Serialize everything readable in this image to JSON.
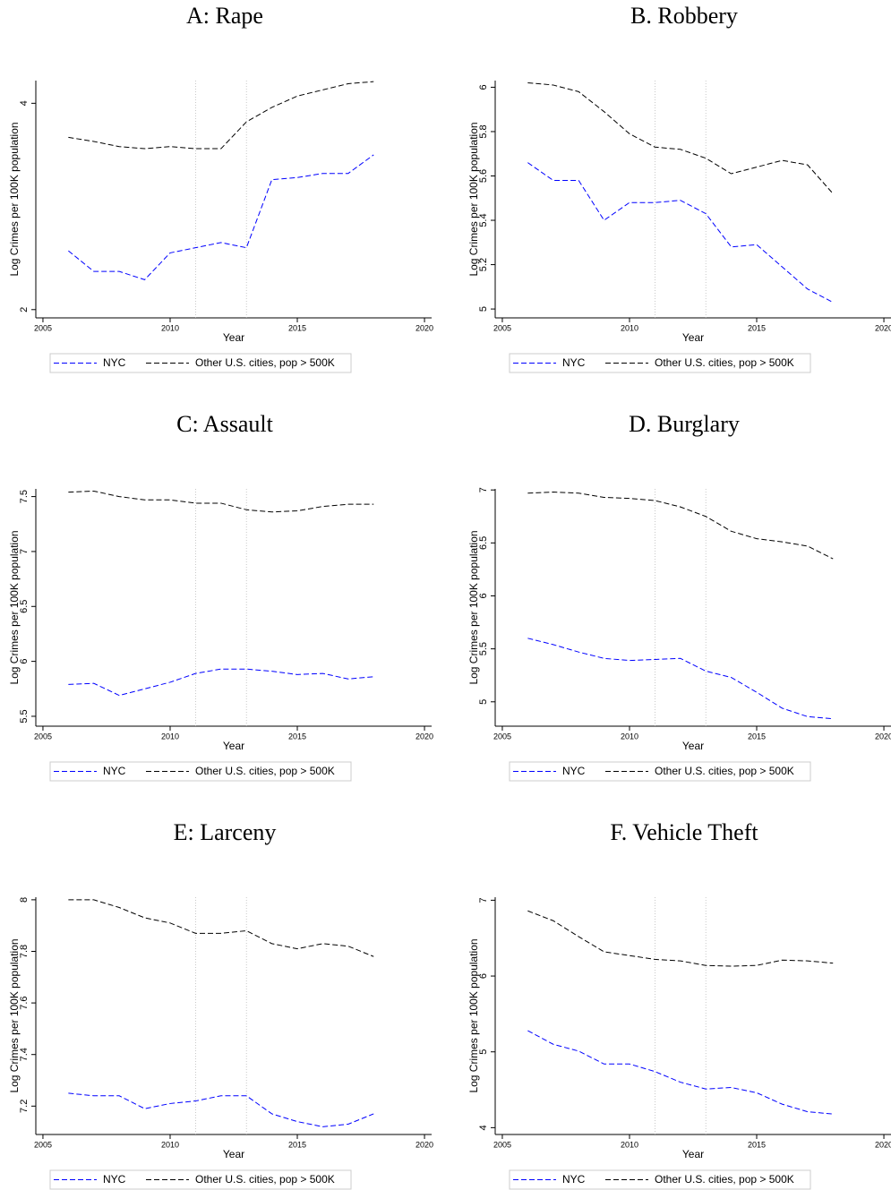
{
  "chart_data": [
    {
      "type": "line",
      "title": "A: Rape",
      "xlabel": "Year",
      "ylabel": "Log Crimes per 100K population",
      "x": [
        2006,
        2007,
        2008,
        2009,
        2010,
        2011,
        2012,
        2013,
        2014,
        2015,
        2016,
        2017,
        2018
      ],
      "series": [
        {
          "name": "NYC",
          "color": "#0000ff",
          "values": [
            2.57,
            2.37,
            2.37,
            2.29,
            2.55,
            2.6,
            2.65,
            2.6,
            3.26,
            3.28,
            3.32,
            3.32,
            3.5
          ]
        },
        {
          "name": "Other U.S. cities, pop > 500K",
          "color": "#000000",
          "values": [
            3.67,
            3.63,
            3.58,
            3.56,
            3.58,
            3.56,
            3.56,
            3.82,
            3.96,
            4.07,
            4.13,
            4.19,
            4.21
          ]
        }
      ],
      "xlim": [
        2004.72,
        2020.28
      ],
      "xticks": [
        2005,
        2010,
        2015,
        2020
      ],
      "ylim": [
        1.92,
        4.22
      ],
      "yticks": [
        2,
        4
      ],
      "vlines": [
        2011,
        2013
      ],
      "legend": "bottom"
    },
    {
      "type": "line",
      "title": "B. Robbery",
      "xlabel": "Year",
      "ylabel": "Log Crimes per 100K population",
      "x": [
        2006,
        2007,
        2008,
        2009,
        2010,
        2011,
        2012,
        2013,
        2014,
        2015,
        2016,
        2017,
        2018
      ],
      "series": [
        {
          "name": "NYC",
          "color": "#0000ff",
          "values": [
            5.66,
            5.58,
            5.58,
            5.4,
            5.48,
            5.48,
            5.49,
            5.43,
            5.28,
            5.29,
            5.19,
            5.09,
            5.03
          ]
        },
        {
          "name": "Other U.S. cities, pop > 500K",
          "color": "#000000",
          "values": [
            6.02,
            6.01,
            5.98,
            5.89,
            5.79,
            5.73,
            5.72,
            5.68,
            5.61,
            5.64,
            5.67,
            5.65,
            5.52
          ]
        }
      ],
      "xlim": [
        2004.72,
        2020.28
      ],
      "xticks": [
        2005,
        2010,
        2015,
        2020
      ],
      "ylim": [
        4.96,
        6.03
      ],
      "yticks": [
        5,
        5.2,
        5.4,
        5.6,
        5.8,
        6
      ],
      "vlines": [
        2011,
        2013
      ],
      "legend": "bottom"
    },
    {
      "type": "line",
      "title": "C: Assault",
      "xlabel": "Year",
      "ylabel": "Log Crimes per 100K population",
      "x": [
        2006,
        2007,
        2008,
        2009,
        2010,
        2011,
        2012,
        2013,
        2014,
        2015,
        2016,
        2017,
        2018
      ],
      "series": [
        {
          "name": "NYC",
          "color": "#0000ff",
          "values": [
            5.79,
            5.8,
            5.69,
            5.75,
            5.81,
            5.89,
            5.93,
            5.93,
            5.91,
            5.88,
            5.89,
            5.84,
            5.86
          ]
        },
        {
          "name": "Other U.S. cities, pop > 500K",
          "color": "#000000",
          "values": [
            7.54,
            7.55,
            7.5,
            7.47,
            7.47,
            7.44,
            7.44,
            7.38,
            7.36,
            7.37,
            7.41,
            7.43,
            7.43
          ]
        }
      ],
      "xlim": [
        2004.72,
        2020.28
      ],
      "xticks": [
        2005,
        2010,
        2015,
        2020
      ],
      "ylim": [
        5.41,
        7.57
      ],
      "yticks": [
        5.5,
        6,
        6.5,
        7,
        7.5
      ],
      "vlines": [
        2011,
        2013
      ],
      "legend": "bottom"
    },
    {
      "type": "line",
      "title": "D. Burglary",
      "xlabel": "Year",
      "ylabel": "Log Crimes per 100K population",
      "x": [
        2006,
        2007,
        2008,
        2009,
        2010,
        2011,
        2012,
        2013,
        2014,
        2015,
        2016,
        2017,
        2018
      ],
      "series": [
        {
          "name": "NYC",
          "color": "#0000ff",
          "values": [
            5.6,
            5.54,
            5.47,
            5.41,
            5.39,
            5.4,
            5.41,
            5.29,
            5.23,
            5.09,
            4.94,
            4.86,
            4.84
          ]
        },
        {
          "name": "Other U.S. cities, pop > 500K",
          "color": "#000000",
          "values": [
            6.97,
            6.98,
            6.97,
            6.93,
            6.92,
            6.9,
            6.84,
            6.75,
            6.61,
            6.54,
            6.51,
            6.47,
            6.35
          ]
        }
      ],
      "xlim": [
        2004.72,
        2020.28
      ],
      "xticks": [
        2005,
        2010,
        2015,
        2020
      ],
      "ylim": [
        4.77,
        7.01
      ],
      "yticks": [
        5,
        5.5,
        6,
        6.5,
        7
      ],
      "vlines": [
        2011,
        2013
      ],
      "legend": "bottom"
    },
    {
      "type": "line",
      "title": "E: Larceny",
      "xlabel": "Year",
      "ylabel": "Log Crimes per 100K population",
      "x": [
        2006,
        2007,
        2008,
        2009,
        2010,
        2011,
        2012,
        2013,
        2014,
        2015,
        2016,
        2017,
        2018
      ],
      "series": [
        {
          "name": "NYC",
          "color": "#0000ff",
          "values": [
            7.25,
            7.24,
            7.24,
            7.19,
            7.21,
            7.22,
            7.24,
            7.24,
            7.17,
            7.14,
            7.12,
            7.13,
            7.17
          ]
        },
        {
          "name": "Other U.S. cities, pop > 500K",
          "color": "#000000",
          "values": [
            8.0,
            8.0,
            7.97,
            7.93,
            7.91,
            7.87,
            7.87,
            7.88,
            7.83,
            7.81,
            7.83,
            7.82,
            7.78
          ]
        }
      ],
      "xlim": [
        2004.72,
        2020.28
      ],
      "xticks": [
        2005,
        2010,
        2015,
        2020
      ],
      "ylim": [
        7.09,
        8.01
      ],
      "yticks": [
        7.2,
        7.4,
        7.6,
        7.8,
        8
      ],
      "vlines": [
        2011,
        2013
      ],
      "legend": "bottom"
    },
    {
      "type": "line",
      "title": "F. Vehicle Theft",
      "xlabel": "Year",
      "ylabel": "Log Crimes per 100K population",
      "x": [
        2006,
        2007,
        2008,
        2009,
        2010,
        2011,
        2012,
        2013,
        2014,
        2015,
        2016,
        2017,
        2018
      ],
      "series": [
        {
          "name": "NYC",
          "color": "#0000ff",
          "values": [
            5.28,
            5.1,
            5.01,
            4.84,
            4.84,
            4.74,
            4.6,
            4.51,
            4.53,
            4.46,
            4.31,
            4.21,
            4.18
          ]
        },
        {
          "name": "Other U.S. cities, pop > 500K",
          "color": "#000000",
          "values": [
            6.86,
            6.73,
            6.52,
            6.32,
            6.27,
            6.22,
            6.2,
            6.14,
            6.13,
            6.14,
            6.21,
            6.2,
            6.17
          ]
        }
      ],
      "xlim": [
        2004.72,
        2020.28
      ],
      "xticks": [
        2005,
        2010,
        2015,
        2020
      ],
      "ylim": [
        3.91,
        7.04
      ],
      "yticks": [
        4,
        5,
        6,
        7
      ],
      "vlines": [
        2011,
        2013
      ],
      "legend": "bottom"
    }
  ]
}
